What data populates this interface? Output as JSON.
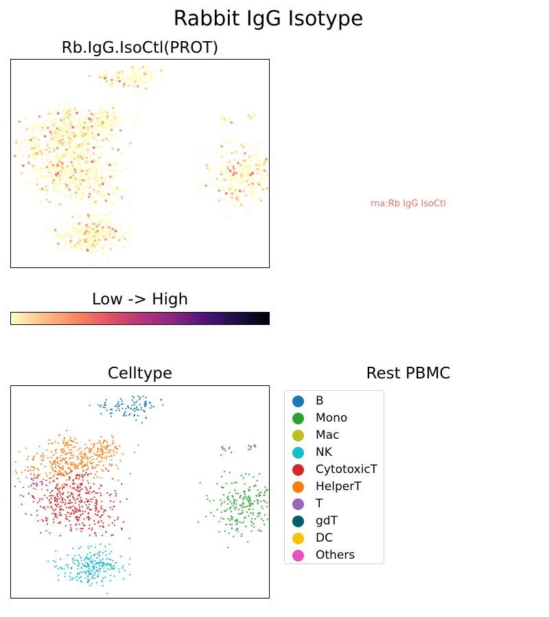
{
  "figure": {
    "title": "Rabbit IgG Isotype",
    "panel1_title": "Rb.IgG.IsoCtl(PROT)",
    "colorbar_label": "Low  ->  High",
    "rna_note": "rna:Rb IgG IsoCtl",
    "panel2_title": "Celltype",
    "legend_title": "Rest PBMC"
  },
  "colors": {
    "cmap": [
      "#fcfdbf",
      "#fec287",
      "#fb8861",
      "#e3526a",
      "#b73779",
      "#8c2981",
      "#51127c",
      "#1d1147",
      "#000004"
    ],
    "note": "#e8706a"
  },
  "chart_data": [
    {
      "type": "scatter",
      "title": "Rb.IgG.IsoCtl(PROT)",
      "xlabel": "",
      "ylabel": "",
      "ticks": "none",
      "colormap": "magma_r",
      "value_range": "Low -> High",
      "note": "expression values are low across all clusters; most points pale yellow, scattered orange/red points"
    },
    {
      "type": "scatter",
      "title": "Celltype",
      "xlabel": "",
      "ylabel": "",
      "ticks": "none",
      "legend": {
        "title": "Rest PBMC",
        "placement": "right",
        "entries": [
          {
            "name": "B",
            "color": "#1f77b4"
          },
          {
            "name": "Mono",
            "color": "#2ca02c"
          },
          {
            "name": "Mac",
            "color": "#bcbd22"
          },
          {
            "name": "NK",
            "color": "#17becf"
          },
          {
            "name": "CytotoxicT",
            "color": "#d62728"
          },
          {
            "name": "HelperT",
            "color": "#ff7f0e"
          },
          {
            "name": "T",
            "color": "#9467bd"
          },
          {
            "name": "gdT",
            "color": "#005f6b"
          },
          {
            "name": "DC",
            "color": "#f9c200"
          },
          {
            "name": "Others",
            "color": "#e84fbf"
          }
        ]
      }
    }
  ]
}
